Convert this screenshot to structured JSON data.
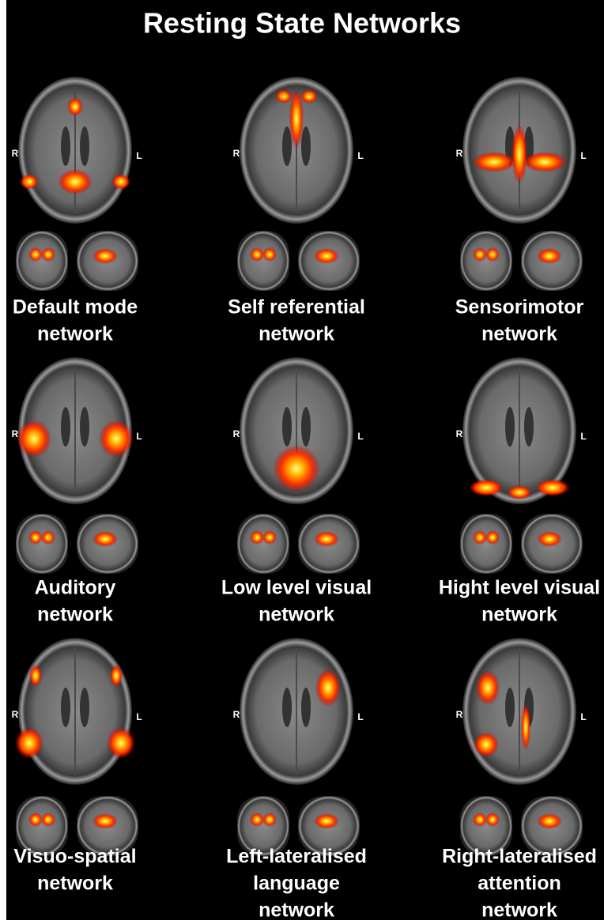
{
  "title": "Resting State Networks",
  "panels": [
    {
      "right_side": "R",
      "left_side": "L",
      "label": [
        "Default mode",
        "network"
      ]
    },
    {
      "right_side": "R",
      "left_side": "L",
      "label": [
        "Self referential",
        "network"
      ]
    },
    {
      "right_side": "R",
      "left_side": "L",
      "label": [
        "Sensorimotor",
        "network"
      ]
    },
    {
      "right_side": "R",
      "left_side": "L",
      "label": [
        "Auditory",
        "network"
      ]
    },
    {
      "right_side": "R",
      "left_side": "L",
      "label": [
        "Low level visual",
        "network"
      ]
    },
    {
      "right_side": "R",
      "left_side": "L",
      "label": [
        "Hight level visual",
        "network"
      ]
    },
    {
      "right_side": "R",
      "left_side": "L",
      "label": [
        "Visuo-spatial",
        "network"
      ]
    },
    {
      "right_side": "R",
      "left_side": "L",
      "label": [
        "Left-lateralised",
        "language",
        "network"
      ]
    },
    {
      "right_side": "R",
      "left_side": "L",
      "label": [
        "Right-lateralised",
        "attention",
        "network"
      ]
    }
  ]
}
